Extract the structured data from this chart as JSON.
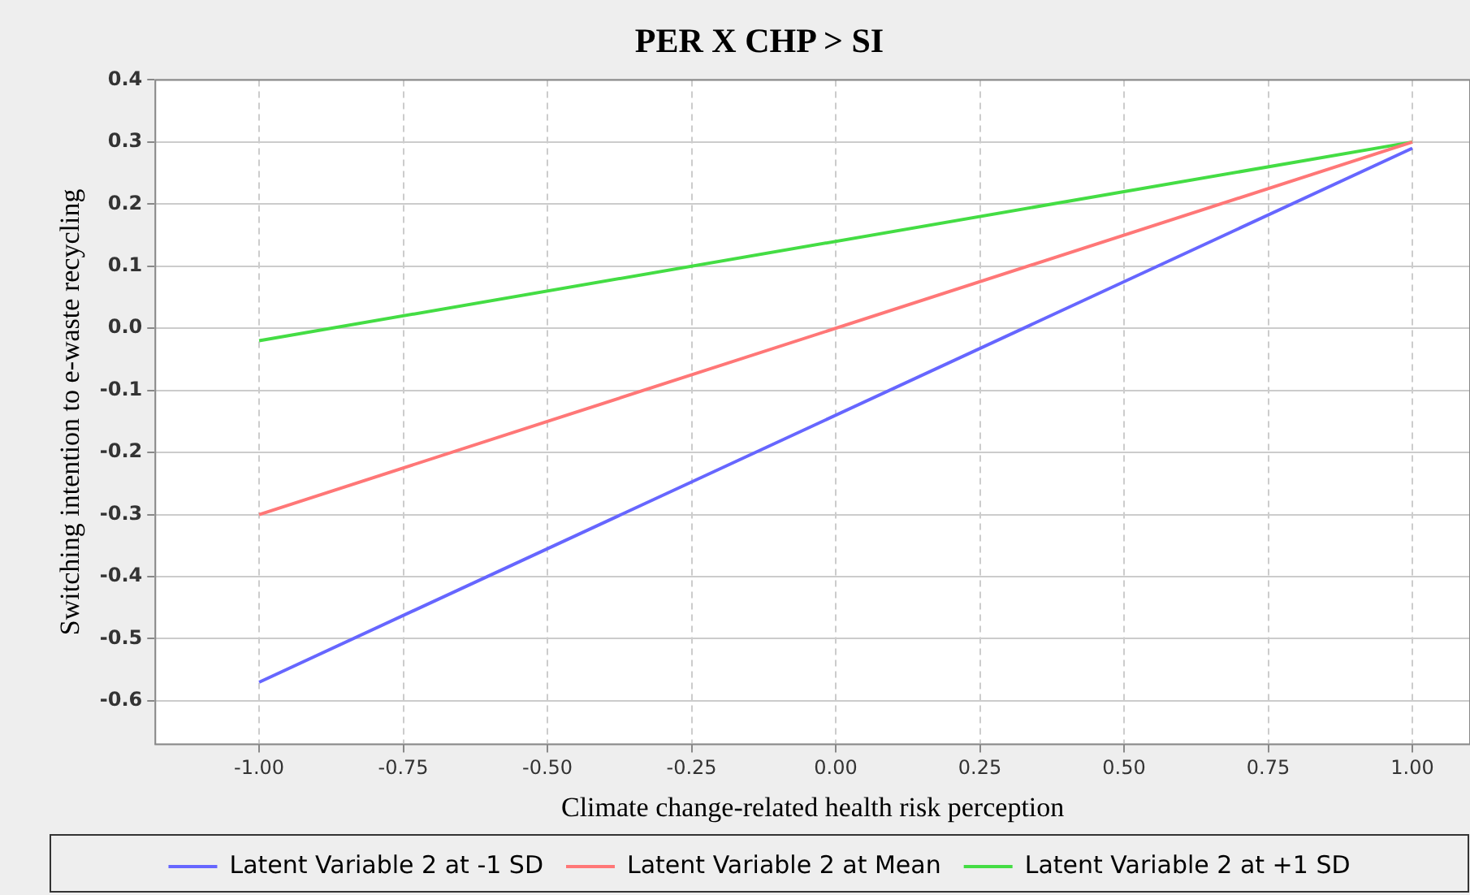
{
  "chart_data": {
    "type": "line",
    "title": "PER X CHP > SI",
    "xlabel": "Climate change-related health risk perception",
    "ylabel": "Switching intention to e-waste recycling",
    "x": [
      -1,
      1
    ],
    "series": [
      {
        "name": "Latent Variable 2 at -1 SD",
        "color": "#6666ff",
        "values": [
          -0.57,
          0.29
        ]
      },
      {
        "name": "Latent Variable 2 at Mean",
        "color": "#ff7777",
        "values": [
          -0.3,
          0.3
        ]
      },
      {
        "name": "Latent Variable 2 at +1 SD",
        "color": "#44dd44",
        "values": [
          -0.02,
          0.3
        ]
      }
    ],
    "xlim": [
      -1.18,
      1.1
    ],
    "xticks": [
      {
        "value": -1,
        "label": "-1.00"
      },
      {
        "value": -0.75,
        "label": "-0.75"
      },
      {
        "value": -0.5,
        "label": "-0.50"
      },
      {
        "value": -0.25,
        "label": "-0.25"
      },
      {
        "value": 0,
        "label": "0.00"
      },
      {
        "value": 0.25,
        "label": "0.25"
      },
      {
        "value": 0.5,
        "label": "0.50"
      },
      {
        "value": 0.75,
        "label": "0.75"
      },
      {
        "value": 1,
        "label": "1.00"
      }
    ],
    "ylim": [
      -0.67,
      0.4
    ],
    "yticks": [
      {
        "value": -0.6,
        "label": "-0.6"
      },
      {
        "value": -0.5,
        "label": "-0.5"
      },
      {
        "value": -0.4,
        "label": "-0.4"
      },
      {
        "value": -0.3,
        "label": "-0.3"
      },
      {
        "value": -0.2,
        "label": "-0.2"
      },
      {
        "value": -0.1,
        "label": "-0.1"
      },
      {
        "value": 0,
        "label": "0.0"
      },
      {
        "value": 0.1,
        "label": "0.1"
      },
      {
        "value": 0.2,
        "label": "0.2"
      },
      {
        "value": 0.3,
        "label": "0.3"
      },
      {
        "value": 0.4,
        "label": "0.4"
      }
    ],
    "grid": true,
    "legend": "bottom",
    "marker": "none",
    "line_style": "solid"
  }
}
